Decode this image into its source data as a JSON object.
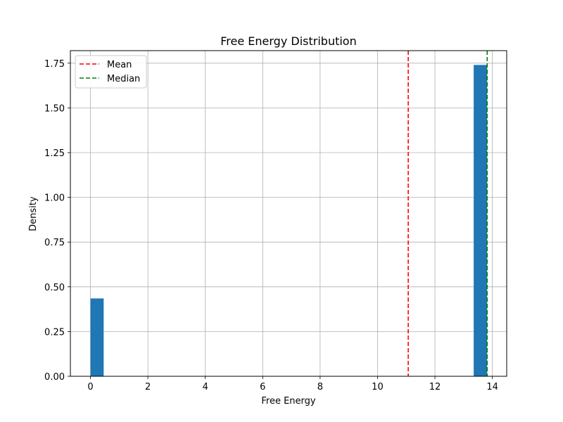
{
  "chart_data": {
    "type": "bar",
    "title": "Free Energy Distribution",
    "xlabel": "Free Energy",
    "ylabel": "Density",
    "xlim": [
      -0.7,
      14.5
    ],
    "ylim": [
      0,
      1.82
    ],
    "xticks": [
      0,
      2,
      4,
      6,
      8,
      10,
      12,
      14
    ],
    "xtick_labels": [
      "0",
      "2",
      "4",
      "6",
      "8",
      "10",
      "12",
      "14"
    ],
    "yticks": [
      0,
      0.25,
      0.5,
      0.75,
      1.0,
      1.25,
      1.5,
      1.75
    ],
    "ytick_labels": [
      "0.00",
      "0.25",
      "0.50",
      "0.75",
      "1.00",
      "1.25",
      "1.50",
      "1.75"
    ],
    "grid": true,
    "bar_color": "#1f77b4",
    "bins": [
      {
        "x0": 0.0,
        "x1": 0.46,
        "density": 0.435
      },
      {
        "x0": 13.35,
        "x1": 13.82,
        "density": 1.74
      }
    ],
    "reference_lines": [
      {
        "name": "Mean",
        "value": 11.07,
        "color": "#ff0000"
      },
      {
        "name": "Median",
        "value": 13.82,
        "color": "#008000"
      }
    ],
    "legend": {
      "placement": "upper-left",
      "entries": [
        "Mean",
        "Median"
      ]
    }
  }
}
